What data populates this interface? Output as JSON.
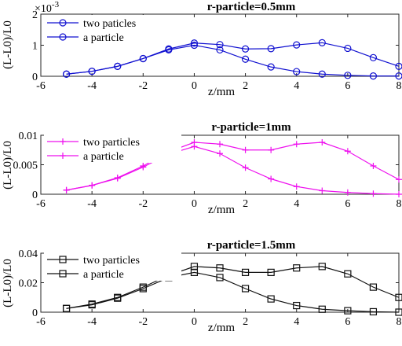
{
  "chart_data": [
    {
      "type": "line",
      "title": "r-particle=0.5mm",
      "xlabel": "z/mm",
      "ylabel": "(L-L0)/L0",
      "y_exponent": "×10",
      "y_exponent_power": "-3",
      "xlim": [
        -6,
        8
      ],
      "ylim": [
        0,
        2
      ],
      "xticks": [
        "-6",
        "-4",
        "-2",
        "0",
        "2",
        "4",
        "6",
        "8"
      ],
      "yticks": [
        "0",
        "1",
        "2"
      ],
      "color": "#1010d0",
      "marker": "circle",
      "grid": false,
      "legend_position": "top-left",
      "x": [
        -5,
        -4,
        -3,
        -2,
        -1,
        0,
        1,
        2,
        3,
        4,
        5,
        6,
        7,
        8
      ],
      "series": [
        {
          "name": "two paticles",
          "values": [
            0.07,
            0.16,
            0.32,
            0.57,
            0.88,
            1.07,
            1.02,
            0.88,
            0.89,
            1.01,
            1.08,
            0.9,
            0.6,
            0.32
          ]
        },
        {
          "name": "a particle",
          "values": [
            0.07,
            0.16,
            0.32,
            0.57,
            0.85,
            1.0,
            0.85,
            0.55,
            0.3,
            0.15,
            0.07,
            0.03,
            0.01,
            0.01
          ]
        }
      ]
    },
    {
      "type": "line",
      "title": "r-particle=1mm",
      "xlabel": "z/mm",
      "ylabel": "(L-L0)/L0",
      "xlim": [
        -6,
        8
      ],
      "ylim": [
        0,
        0.01
      ],
      "xticks": [
        "-6",
        "-4",
        "-2",
        "0",
        "2",
        "4",
        "6",
        "8"
      ],
      "yticks": [
        "0",
        "0.005",
        "0.01"
      ],
      "color": "#ee11ee",
      "marker": "plus",
      "grid": false,
      "legend_position": "top-left",
      "x": [
        -5,
        -4,
        -3,
        -2,
        -1,
        0,
        1,
        2,
        3,
        4,
        5,
        6,
        7,
        8
      ],
      "series": [
        {
          "name": "two particles",
          "values": [
            0.0007,
            0.0015,
            0.0028,
            0.0048,
            0.0072,
            0.0088,
            0.0085,
            0.0075,
            0.0075,
            0.0085,
            0.0088,
            0.0073,
            0.0048,
            0.0025
          ]
        },
        {
          "name": "a particle",
          "values": [
            0.0007,
            0.0015,
            0.0027,
            0.0046,
            0.0068,
            0.0081,
            0.0069,
            0.0045,
            0.0026,
            0.0013,
            0.0006,
            0.0003,
            0.0001,
            0.0
          ]
        }
      ]
    },
    {
      "type": "line",
      "title": "r-particle=1.5mm",
      "xlabel": "z/mm",
      "ylabel": "(L-L0)/L0",
      "xlim": [
        -6,
        8
      ],
      "ylim": [
        0,
        0.04
      ],
      "xticks": [
        "-6",
        "-4",
        "-2",
        "0",
        "2",
        "4",
        "6",
        "8"
      ],
      "yticks": [
        "0",
        "0.02",
        "0.04"
      ],
      "color": "#111111",
      "marker": "square",
      "grid": false,
      "legend_position": "top-left",
      "x": [
        -5,
        -4,
        -3,
        -2,
        -1,
        0,
        1,
        2,
        3,
        4,
        5,
        6,
        7,
        8
      ],
      "series": [
        {
          "name": "two particles",
          "values": [
            0.0025,
            0.0055,
            0.01,
            0.017,
            0.025,
            0.031,
            0.03,
            0.027,
            0.027,
            0.03,
            0.031,
            0.026,
            0.017,
            0.01
          ]
        },
        {
          "name": "a particle",
          "values": [
            0.0025,
            0.005,
            0.0095,
            0.016,
            0.0235,
            0.027,
            0.0235,
            0.016,
            0.009,
            0.0045,
            0.002,
            0.001,
            0.0003,
            0.0
          ]
        }
      ]
    }
  ]
}
